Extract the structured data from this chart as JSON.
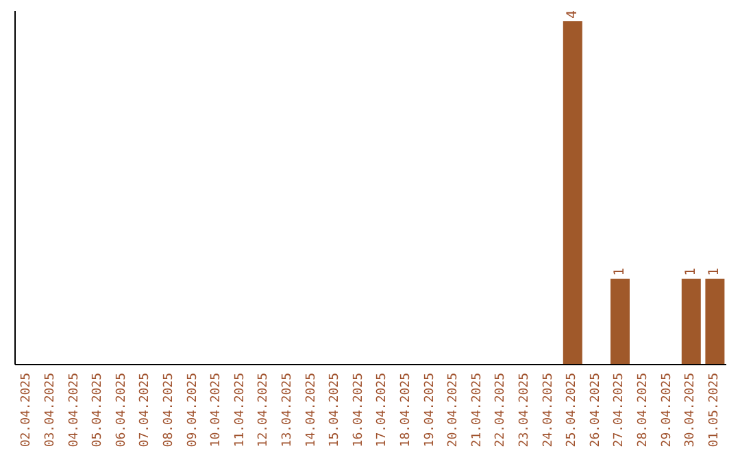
{
  "chart_data": {
    "type": "bar",
    "categories": [
      "02.04.2025",
      "03.04.2025",
      "04.04.2025",
      "05.04.2025",
      "06.04.2025",
      "07.04.2025",
      "08.04.2025",
      "09.04.2025",
      "10.04.2025",
      "11.04.2025",
      "12.04.2025",
      "13.04.2025",
      "14.04.2025",
      "15.04.2025",
      "16.04.2025",
      "17.04.2025",
      "18.04.2025",
      "19.04.2025",
      "20.04.2025",
      "21.04.2025",
      "22.04.2025",
      "23.04.2025",
      "24.04.2025",
      "25.04.2025",
      "26.04.2025",
      "27.04.2025",
      "28.04.2025",
      "29.04.2025",
      "30.04.2025",
      "01.05.2025"
    ],
    "values": [
      null,
      null,
      null,
      null,
      null,
      null,
      null,
      null,
      null,
      null,
      null,
      null,
      null,
      null,
      null,
      null,
      null,
      null,
      null,
      null,
      null,
      null,
      null,
      4,
      null,
      1,
      null,
      null,
      1,
      1
    ],
    "data_labels": true,
    "color": "#a0592a",
    "grid": false,
    "legend": false,
    "tick_labels": "x"
  }
}
